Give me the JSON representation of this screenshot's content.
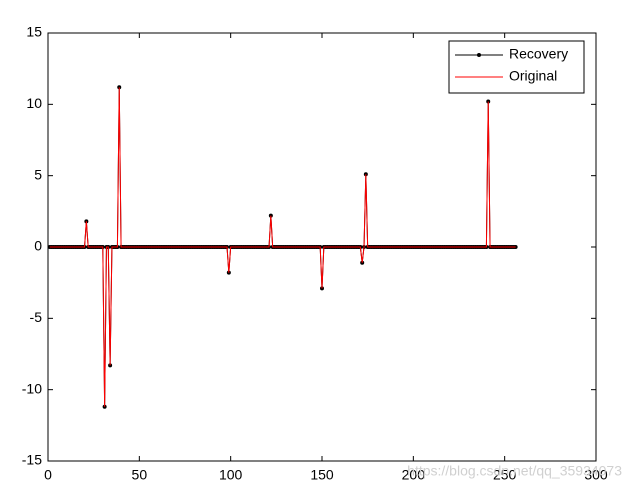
{
  "chart_data": {
    "type": "line",
    "x": [
      1,
      2,
      3,
      4,
      5,
      6,
      7,
      8,
      9,
      10,
      11,
      12,
      13,
      14,
      15,
      16,
      17,
      18,
      19,
      20,
      21,
      22,
      23,
      24,
      25,
      26,
      27,
      28,
      29,
      30,
      31,
      32,
      33,
      34,
      35,
      36,
      37,
      38,
      39,
      40,
      41,
      42,
      43,
      44,
      45,
      46,
      47,
      48,
      49,
      50,
      51,
      52,
      53,
      54,
      55,
      56,
      57,
      58,
      59,
      60,
      61,
      62,
      63,
      64,
      65,
      66,
      67,
      68,
      69,
      70,
      71,
      72,
      73,
      74,
      75,
      76,
      77,
      78,
      79,
      80,
      81,
      82,
      83,
      84,
      85,
      86,
      87,
      88,
      89,
      90,
      91,
      92,
      93,
      94,
      95,
      96,
      97,
      98,
      99,
      100,
      101,
      102,
      103,
      104,
      105,
      106,
      107,
      108,
      109,
      110,
      111,
      112,
      113,
      114,
      115,
      116,
      117,
      118,
      119,
      120,
      121,
      122,
      123,
      124,
      125,
      126,
      127,
      128,
      129,
      130,
      131,
      132,
      133,
      134,
      135,
      136,
      137,
      138,
      139,
      140,
      141,
      142,
      143,
      144,
      145,
      146,
      147,
      148,
      149,
      150,
      151,
      152,
      153,
      154,
      155,
      156,
      157,
      158,
      159,
      160,
      161,
      162,
      163,
      164,
      165,
      166,
      167,
      168,
      169,
      170,
      171,
      172,
      173,
      174,
      175,
      176,
      177,
      178,
      179,
      180,
      181,
      182,
      183,
      184,
      185,
      186,
      187,
      188,
      189,
      190,
      191,
      192,
      193,
      194,
      195,
      196,
      197,
      198,
      199,
      200,
      201,
      202,
      203,
      204,
      205,
      206,
      207,
      208,
      209,
      210,
      211,
      212,
      213,
      214,
      215,
      216,
      217,
      218,
      219,
      220,
      221,
      222,
      223,
      224,
      225,
      226,
      227,
      228,
      229,
      230,
      231,
      232,
      233,
      234,
      235,
      236,
      237,
      238,
      239,
      240,
      241,
      242,
      243,
      244,
      245,
      246,
      247,
      248,
      249,
      250,
      251,
      252,
      253,
      254,
      255,
      256
    ],
    "series": [
      {
        "name": "Recovery",
        "color": "#000000",
        "marker": true,
        "values": [
          0,
          0,
          0,
          0,
          0,
          0,
          0,
          0,
          0,
          0,
          0,
          0,
          0,
          0,
          0,
          0,
          0,
          0,
          0,
          0,
          1.8,
          0,
          0,
          0,
          0,
          0,
          0,
          0,
          0,
          0,
          -11.2,
          0,
          0,
          -8.3,
          0,
          0,
          0,
          0,
          11.2,
          0,
          0,
          0,
          0,
          0,
          0,
          0,
          0,
          0,
          0,
          0,
          0,
          0,
          0,
          0,
          0,
          0,
          0,
          0,
          0,
          0,
          0,
          0,
          0,
          0,
          0,
          0,
          0,
          0,
          0,
          0,
          0,
          0,
          0,
          0,
          0,
          0,
          0,
          0,
          0,
          0,
          0,
          0,
          0,
          0,
          0,
          0,
          0,
          0,
          0,
          0,
          0,
          0,
          0,
          0,
          0,
          0,
          0,
          0,
          -1.8,
          0,
          0,
          0,
          0,
          0,
          0,
          0,
          0,
          0,
          0,
          0,
          0,
          0,
          0,
          0,
          0,
          0,
          0,
          0,
          0,
          0,
          0,
          2.2,
          0,
          0,
          0,
          0,
          0,
          0,
          0,
          0,
          0,
          0,
          0,
          0,
          0,
          0,
          0,
          0,
          0,
          0,
          0,
          0,
          0,
          0,
          0,
          0,
          0,
          0,
          0,
          -2.9,
          0,
          0,
          0,
          0,
          0,
          0,
          0,
          0,
          0,
          0,
          0,
          0,
          0,
          0,
          0,
          0,
          0,
          0,
          0,
          0,
          0,
          -1.1,
          0,
          5.1,
          0,
          0,
          0,
          0,
          0,
          0,
          0,
          0,
          0,
          0,
          0,
          0,
          0,
          0,
          0,
          0,
          0,
          0,
          0,
          0,
          0,
          0,
          0,
          0,
          0,
          0,
          0,
          0,
          0,
          0,
          0,
          0,
          0,
          0,
          0,
          0,
          0,
          0,
          0,
          0,
          0,
          0,
          0,
          0,
          0,
          0,
          0,
          0,
          0,
          0,
          0,
          0,
          0,
          0,
          0,
          0,
          0,
          0,
          0,
          0,
          0,
          0,
          0,
          0,
          0,
          0,
          10.2,
          0,
          0,
          0,
          0,
          0,
          0,
          0,
          0,
          0,
          0,
          0,
          0,
          0,
          0,
          0
        ]
      },
      {
        "name": "Original",
        "color": "#ff0000",
        "marker": false,
        "values": [
          0,
          0,
          0,
          0,
          0,
          0,
          0,
          0,
          0,
          0,
          0,
          0,
          0,
          0,
          0,
          0,
          0,
          0,
          0,
          0,
          1.8,
          0,
          0,
          0,
          0,
          0,
          0,
          0,
          0,
          0,
          -11.2,
          0,
          0,
          -8.3,
          0,
          0,
          0,
          0,
          11.2,
          0,
          0,
          0,
          0,
          0,
          0,
          0,
          0,
          0,
          0,
          0,
          0,
          0,
          0,
          0,
          0,
          0,
          0,
          0,
          0,
          0,
          0,
          0,
          0,
          0,
          0,
          0,
          0,
          0,
          0,
          0,
          0,
          0,
          0,
          0,
          0,
          0,
          0,
          0,
          0,
          0,
          0,
          0,
          0,
          0,
          0,
          0,
          0,
          0,
          0,
          0,
          0,
          0,
          0,
          0,
          0,
          0,
          0,
          0,
          -1.8,
          0,
          0,
          0,
          0,
          0,
          0,
          0,
          0,
          0,
          0,
          0,
          0,
          0,
          0,
          0,
          0,
          0,
          0,
          0,
          0,
          0,
          0,
          2.2,
          0,
          0,
          0,
          0,
          0,
          0,
          0,
          0,
          0,
          0,
          0,
          0,
          0,
          0,
          0,
          0,
          0,
          0,
          0,
          0,
          0,
          0,
          0,
          0,
          0,
          0,
          0,
          -2.9,
          0,
          0,
          0,
          0,
          0,
          0,
          0,
          0,
          0,
          0,
          0,
          0,
          0,
          0,
          0,
          0,
          0,
          0,
          0,
          0,
          0,
          -1.1,
          0,
          5.1,
          0,
          0,
          0,
          0,
          0,
          0,
          0,
          0,
          0,
          0,
          0,
          0,
          0,
          0,
          0,
          0,
          0,
          0,
          0,
          0,
          0,
          0,
          0,
          0,
          0,
          0,
          0,
          0,
          0,
          0,
          0,
          0,
          0,
          0,
          0,
          0,
          0,
          0,
          0,
          0,
          0,
          0,
          0,
          0,
          0,
          0,
          0,
          0,
          0,
          0,
          0,
          0,
          0,
          0,
          0,
          0,
          0,
          0,
          0,
          0,
          0,
          0,
          0,
          0,
          0,
          0,
          10.2,
          0,
          0,
          0,
          0,
          0,
          0,
          0,
          0,
          0,
          0,
          0,
          0,
          0,
          0,
          0
        ]
      }
    ],
    "xlim": [
      0,
      300
    ],
    "xticks": [
      0,
      50,
      100,
      150,
      200,
      250,
      300
    ],
    "ylim": [
      -15,
      15
    ],
    "yticks": [
      -15,
      -10,
      -5,
      0,
      5,
      10,
      15
    ],
    "grid": false,
    "legend": "top-right",
    "watermark": "https://blog.csdn.net/qq_35934073"
  }
}
